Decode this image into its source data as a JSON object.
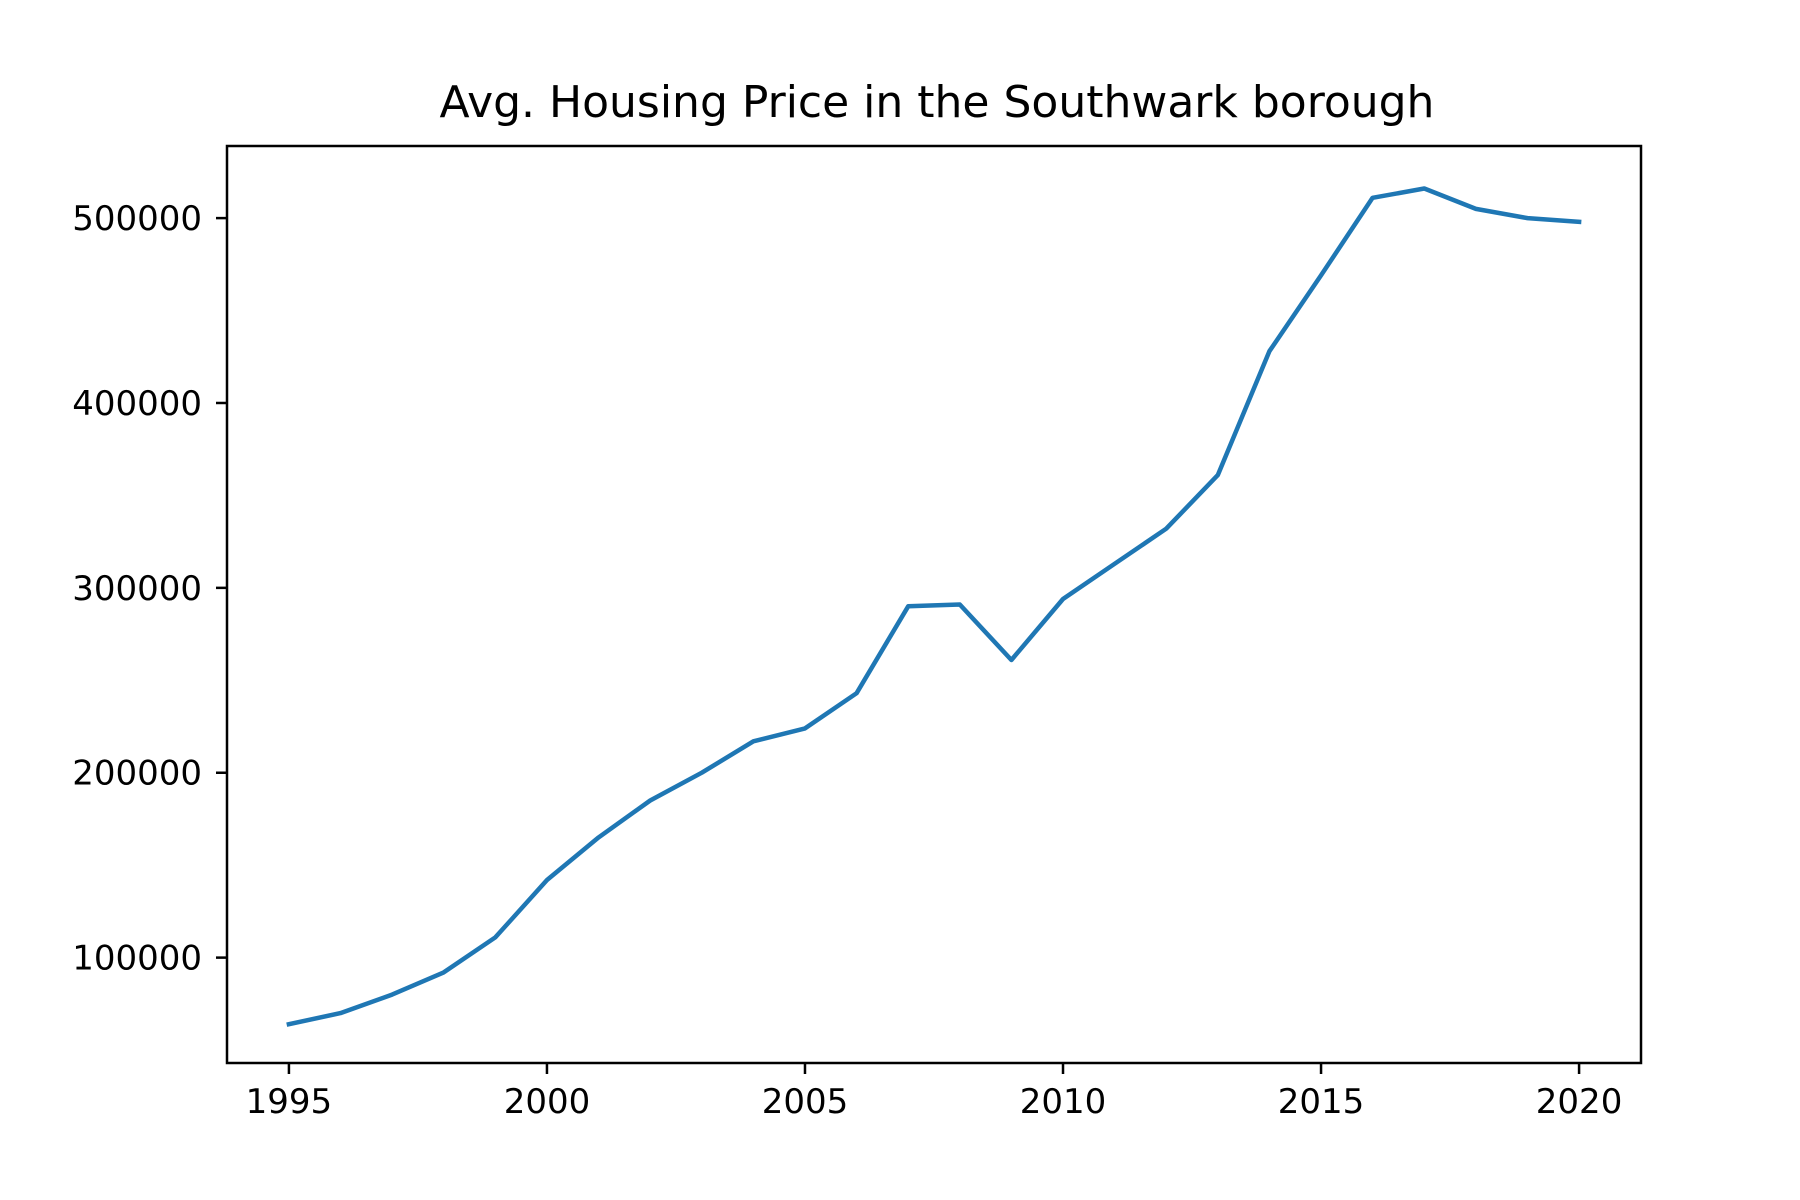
{
  "chart_data": {
    "type": "line",
    "title": "Avg. Housing Price in the Southwark borough",
    "xlabel": "",
    "ylabel": "",
    "xlim": [
      1993.8,
      2021.2
    ],
    "ylim": [
      43000,
      539000
    ],
    "xticks": [
      1995,
      2000,
      2005,
      2010,
      2015,
      2020
    ],
    "xtick_labels": [
      "1995",
      "2000",
      "2005",
      "2010",
      "2015",
      "2020"
    ],
    "yticks": [
      100000,
      200000,
      300000,
      400000,
      500000
    ],
    "ytick_labels": [
      "100000",
      "200000",
      "300000",
      "400000",
      "500000"
    ],
    "grid": false,
    "legend": "none",
    "series": [
      {
        "color": "#1f77b4",
        "x": [
          1995,
          1996,
          1997,
          1998,
          1999,
          2000,
          2001,
          2002,
          2003,
          2004,
          2005,
          2006,
          2007,
          2008,
          2009,
          2010,
          2011,
          2012,
          2013,
          2014,
          2015,
          2016,
          2017,
          2018,
          2019,
          2020
        ],
        "y": [
          64000,
          70000,
          80000,
          92000,
          111000,
          142000,
          165000,
          185000,
          200000,
          217000,
          224000,
          243000,
          290000,
          291000,
          261000,
          294000,
          313000,
          332000,
          361000,
          428000,
          469000,
          511000,
          516000,
          505000,
          500000,
          498000
        ]
      }
    ]
  }
}
